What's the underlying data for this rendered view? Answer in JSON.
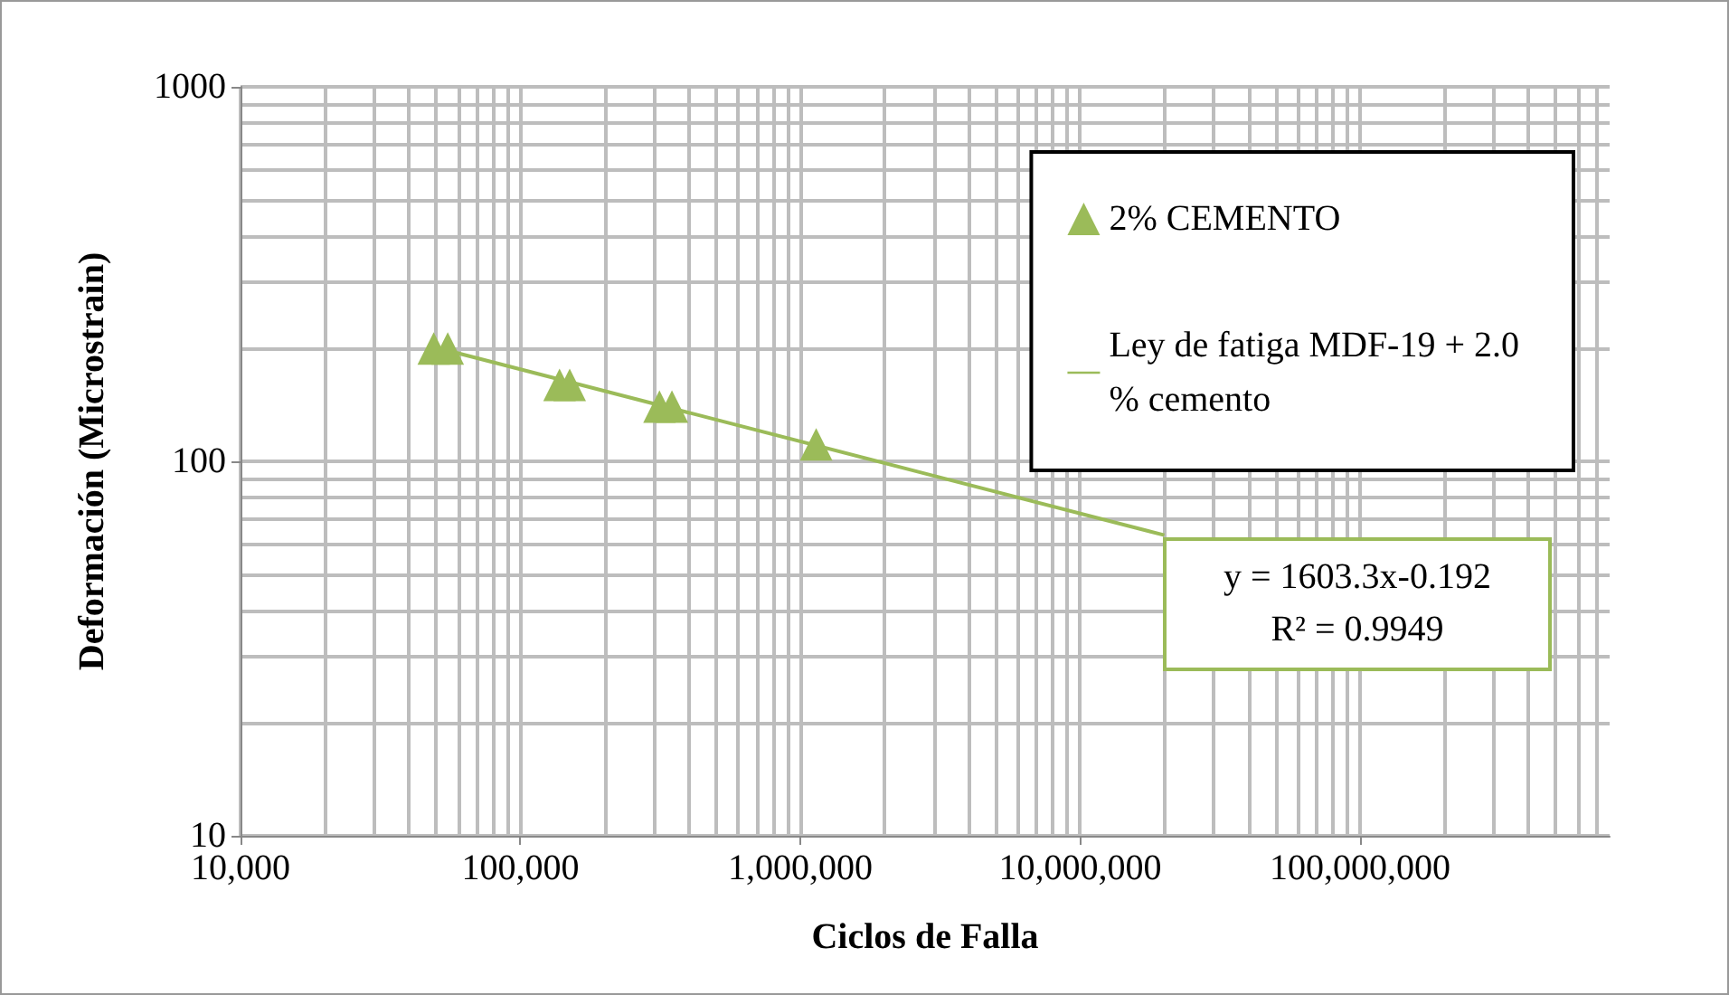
{
  "chart_data": {
    "type": "scatter",
    "xlabel": "Ciclos de Falla",
    "ylabel": "Deformación (Microstrain)",
    "log": "xy",
    "grid": true,
    "legend": "top right",
    "xlim": [
      10000,
      780000000
    ],
    "xticks": [
      {
        "value": 10000,
        "label": "10,000"
      },
      {
        "value": 100000,
        "label": "100,000"
      },
      {
        "value": 1000000,
        "label": "1,000,000"
      },
      {
        "value": 10000000,
        "label": "10,000,000"
      },
      {
        "value": 100000000,
        "label": "100,000,000"
      }
    ],
    "ylim": [
      10,
      1000
    ],
    "yticks": [
      10,
      100,
      1000
    ],
    "series": [
      {
        "name": "2% CEMENTO",
        "marker": "triangle",
        "color": "#9bbb59",
        "x": [
          49000,
          55000,
          138000,
          150000,
          314000,
          348000,
          1140000
        ],
        "values": [
          200,
          200,
          160,
          160,
          140,
          140,
          111
        ]
      },
      {
        "name": "Ley de fatiga MDF-19 + 2.0\n% cemento",
        "type": "line",
        "marker": "none",
        "color": "#9bbb59",
        "x": [
          49000,
          20000000
        ],
        "values": [
          202,
          63.5
        ]
      }
    ],
    "annotations": [
      "y = 1603.3x-0.192",
      "R² = 0.9949"
    ]
  }
}
